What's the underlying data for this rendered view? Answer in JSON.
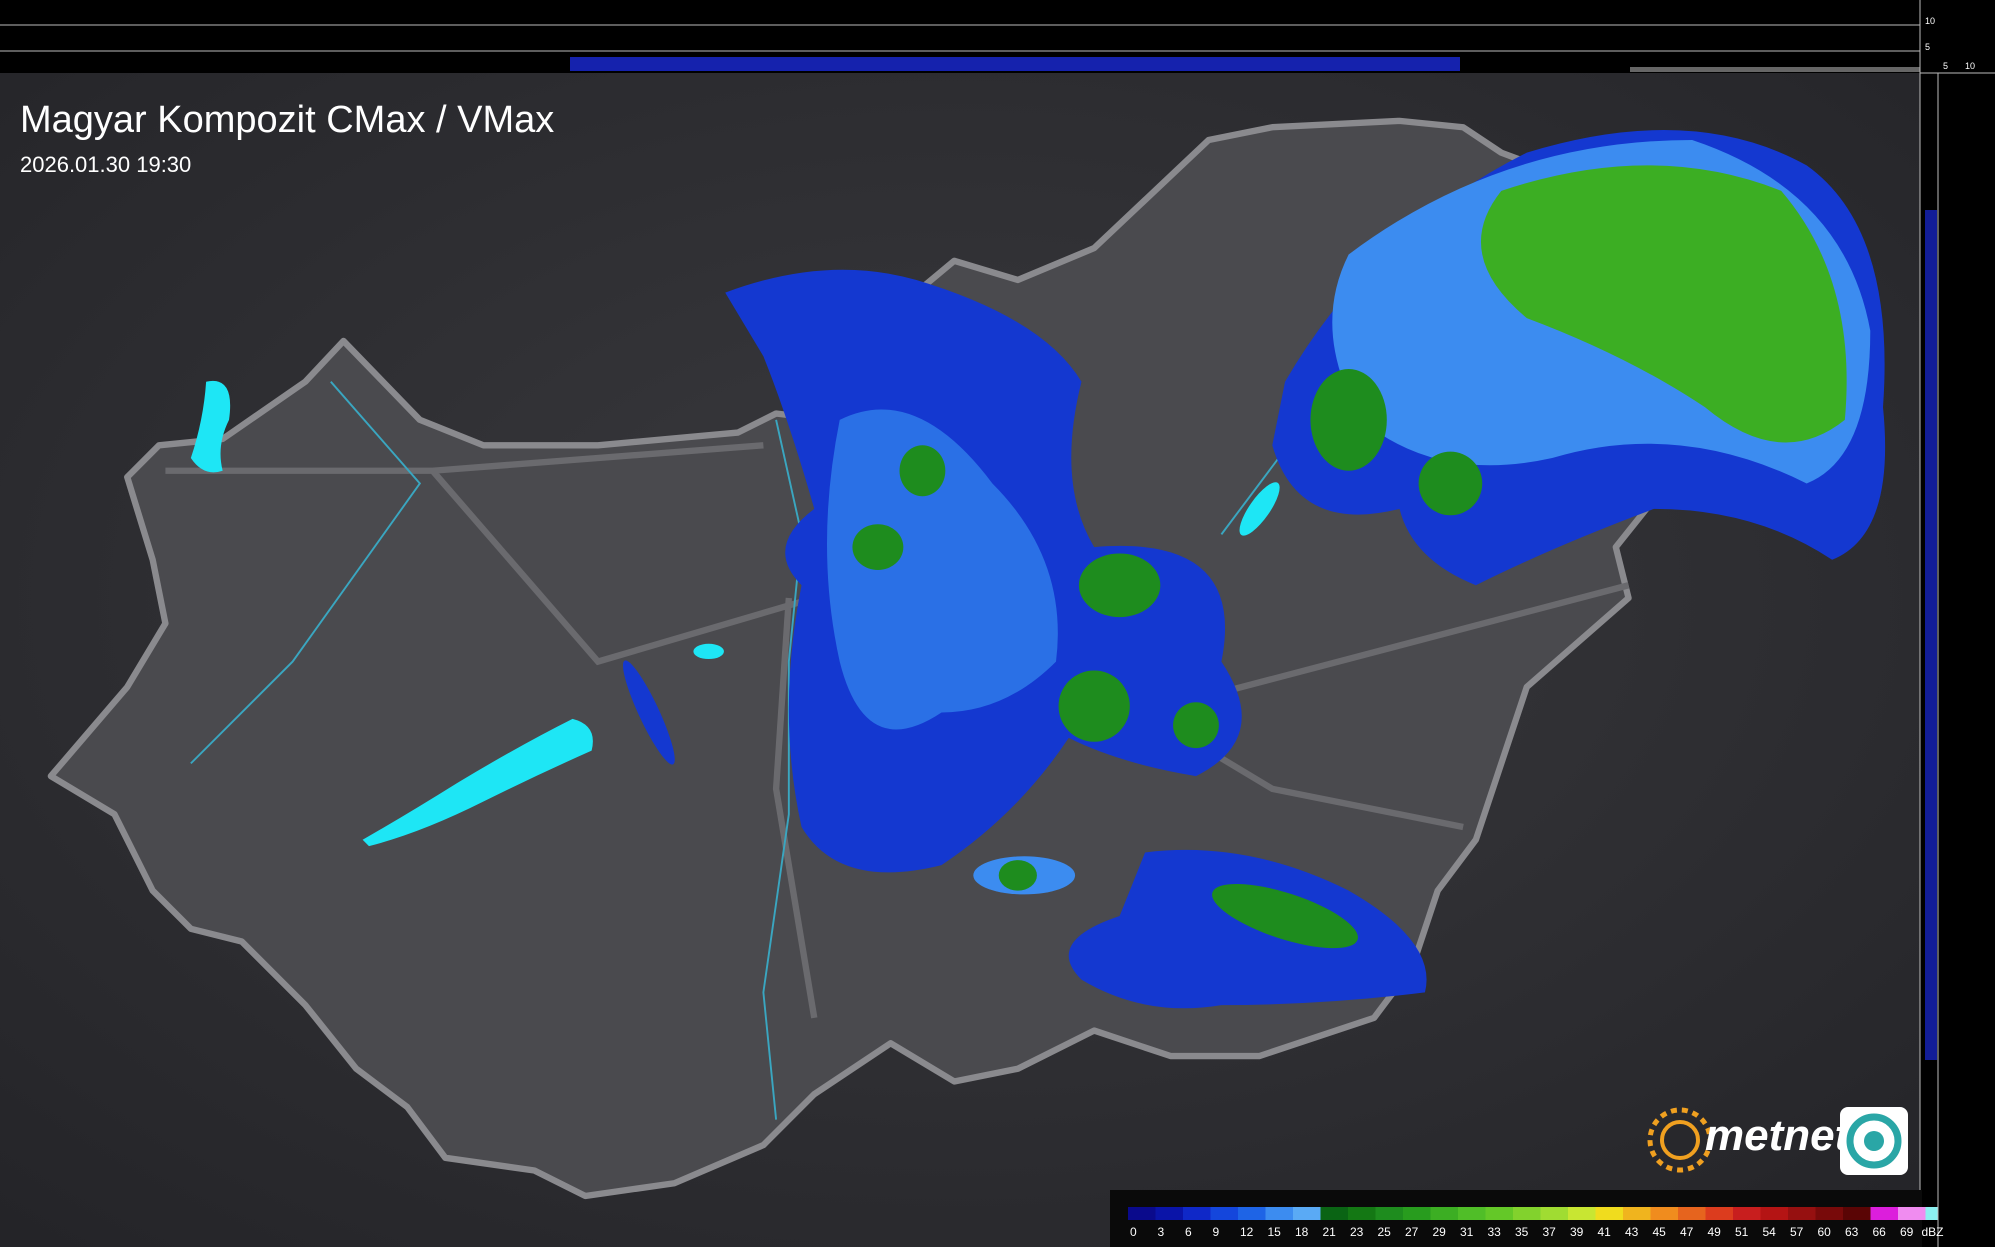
{
  "header": {
    "title": "Magyar Kompozit CMax / VMax",
    "timestamp": "2026.01.30 19:30"
  },
  "logo": {
    "text": "metnet"
  },
  "side_profile": {
    "top_ticks": [
      "10",
      "5"
    ],
    "bottom_ticks": [
      "5",
      "10"
    ]
  },
  "legend": {
    "unit": "dBZ",
    "stops": [
      0,
      3,
      6,
      9,
      12,
      15,
      18,
      21,
      23,
      25,
      27,
      29,
      31,
      33,
      35,
      37,
      39,
      41,
      43,
      45,
      47,
      49,
      51,
      54,
      57,
      60,
      63,
      66,
      69
    ],
    "colors": [
      "#0a0a8c",
      "#0a14a8",
      "#0f28c8",
      "#1446dc",
      "#1e64e6",
      "#3c8cf0",
      "#5aaaf5",
      "#0a6414",
      "#147814",
      "#1e8c1e",
      "#289c1e",
      "#3cae23",
      "#50be28",
      "#64c828",
      "#82d22d",
      "#a0dc32",
      "#c8e632",
      "#f0dc1e",
      "#f0b41e",
      "#f08c1e",
      "#e6641e",
      "#dc3c1e",
      "#c81e1e",
      "#b41414",
      "#961010",
      "#780a0a",
      "#5a0505",
      "#dc1edc",
      "#f08cf0"
    ],
    "last_color": "#8cf0f0"
  }
}
